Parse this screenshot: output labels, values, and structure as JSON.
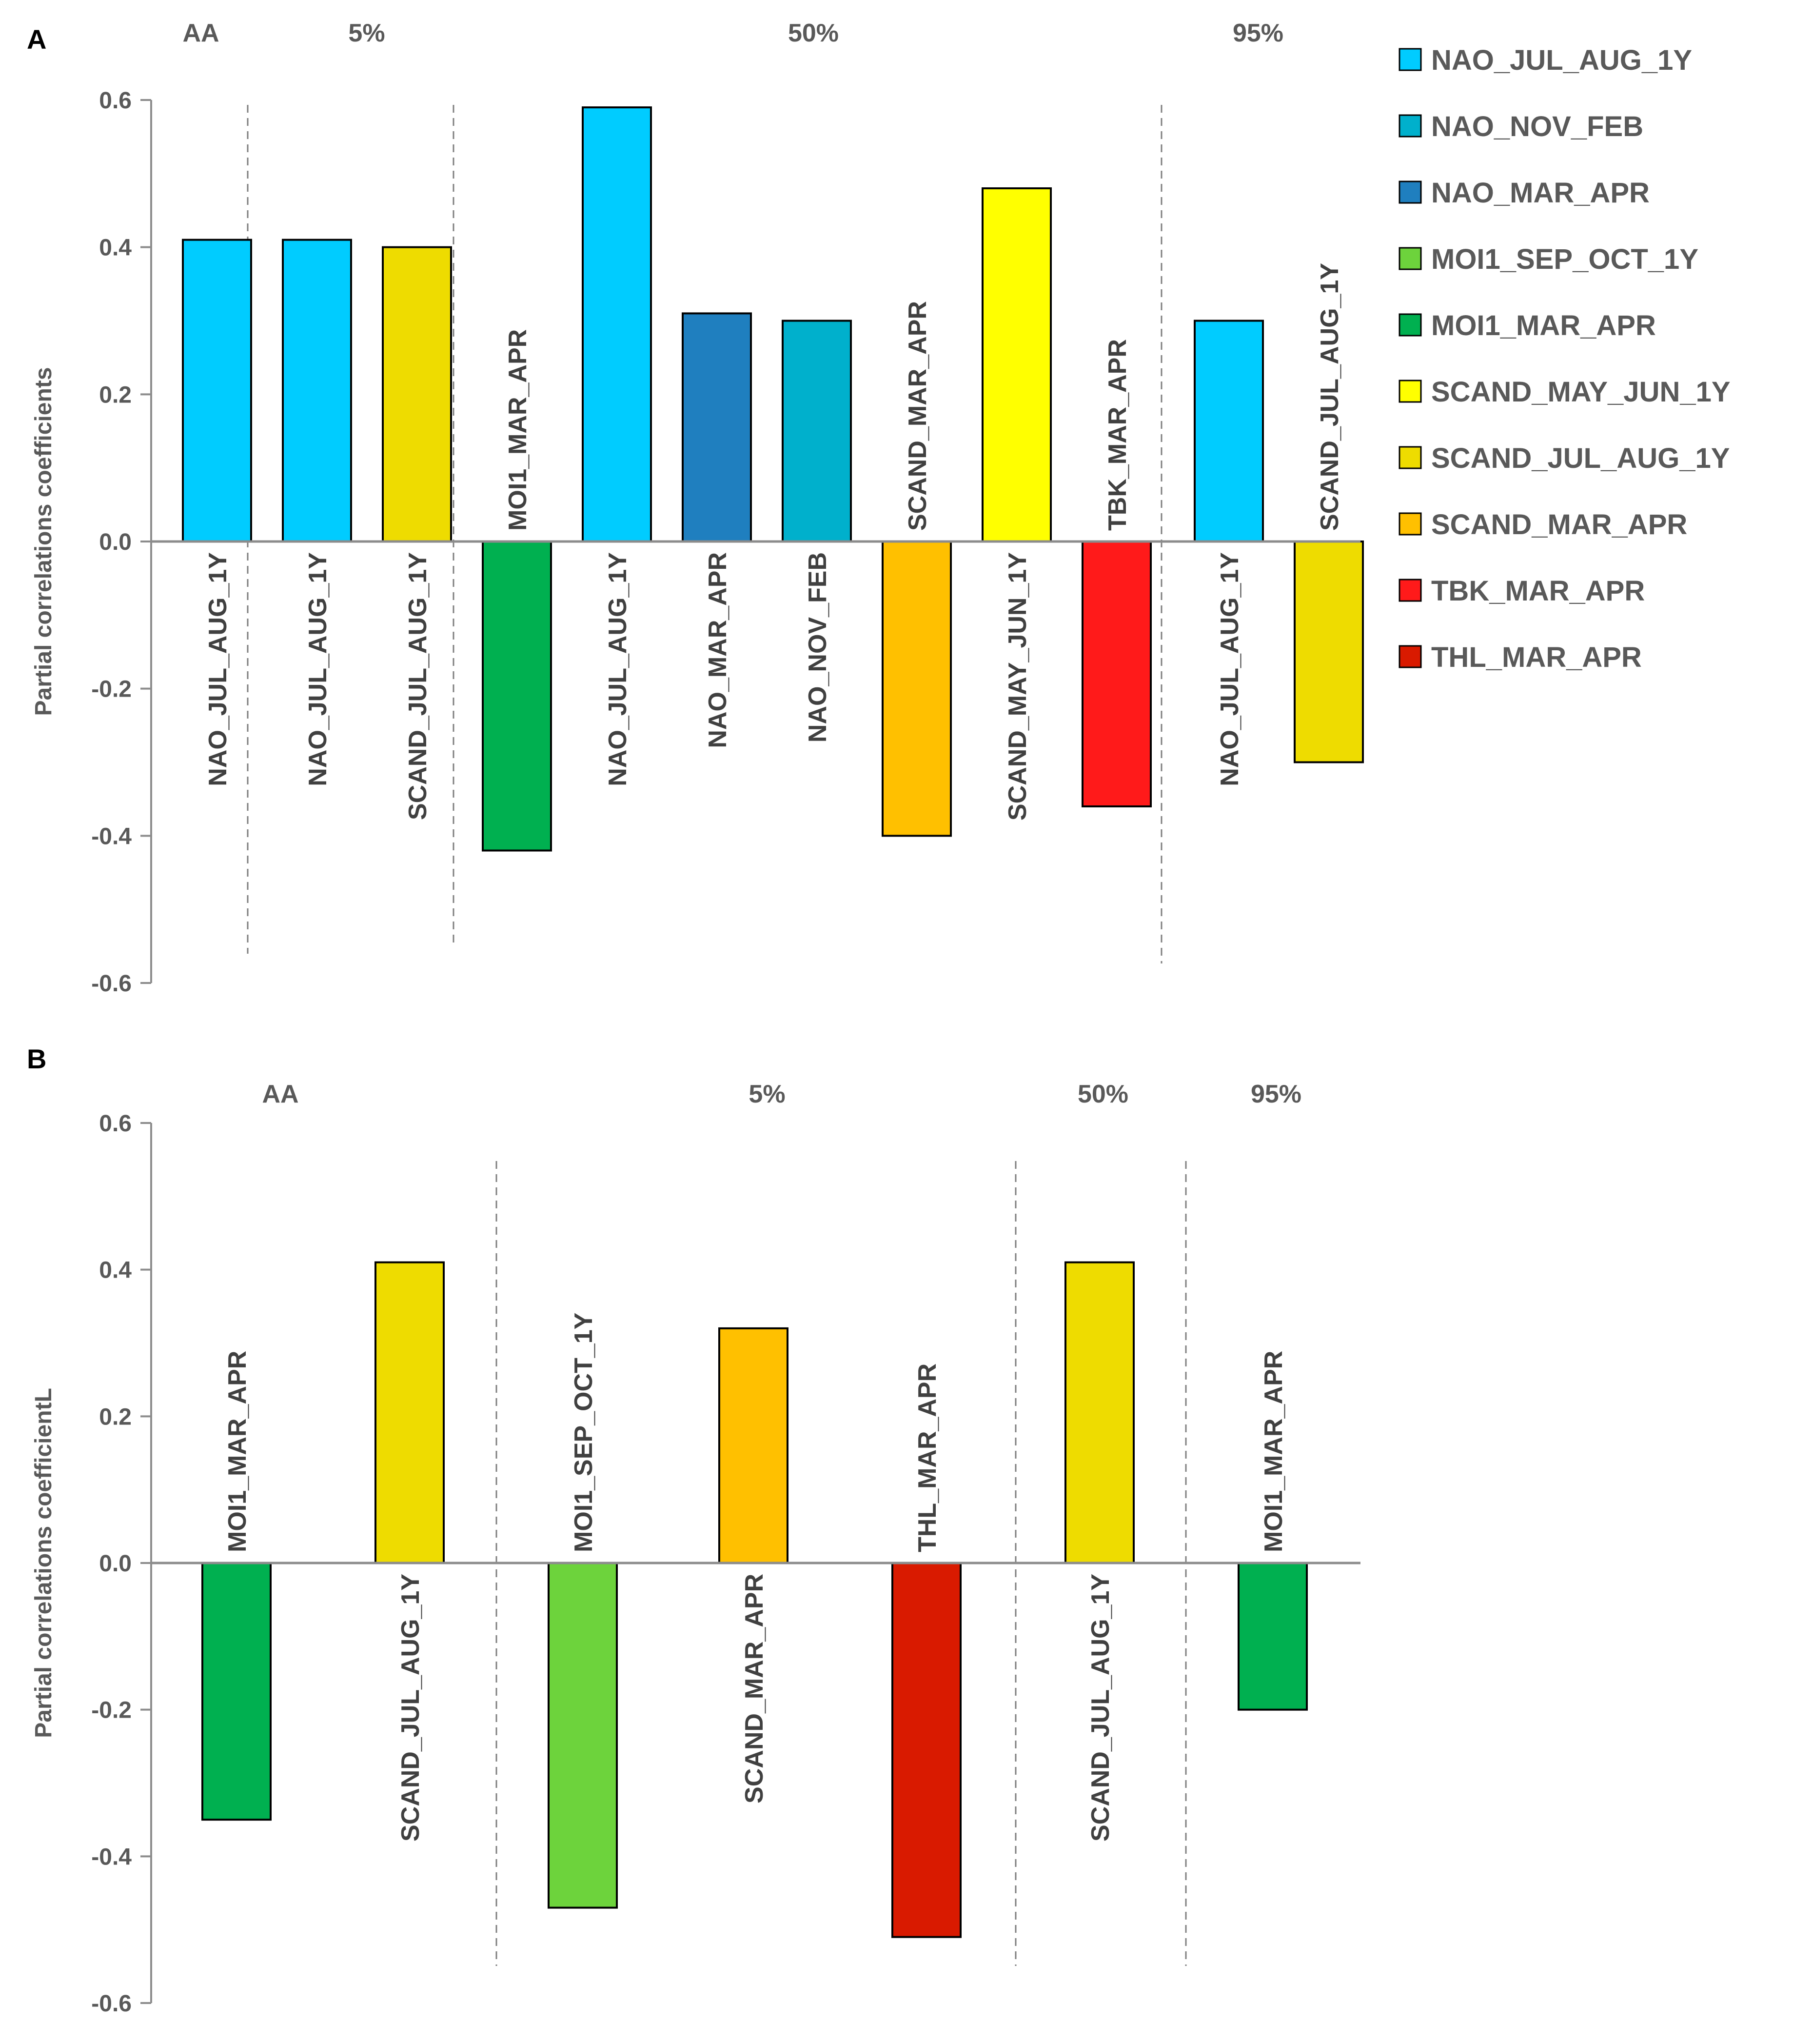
{
  "colors": {
    "NAO_JUL_AUG_1Y": "#00CCFF",
    "NAO_NOV_FEB": "#00B0CC",
    "NAO_MAR_APR": "#1F7FBF",
    "MOI1_SEP_OCT_1Y": "#6DD33C",
    "MOI1_MAR_APR": "#00B050",
    "SCAND_MAY_JUN_1Y": "#FFFF00",
    "SCAND_JUL_AUG_1Y": "#EEDC00",
    "SCAND_MAR_APR": "#FFC000",
    "TBK_MAR_APR": "#FF1A1A",
    "THL_MAR_APR": "#D91A00"
  },
  "legend": {
    "items": [
      "NAO_JUL_AUG_1Y",
      "NAO_NOV_FEB",
      "NAO_MAR_APR",
      "MOI1_SEP_OCT_1Y",
      "MOI1_MAR_APR",
      "SCAND_MAY_JUN_1Y",
      "SCAND_JUL_AUG_1Y",
      "SCAND_MAR_APR",
      "TBK_MAR_APR",
      "THL_MAR_APR"
    ]
  },
  "chart_data": [
    {
      "type": "bar",
      "panel": "A",
      "ylabel": "Partial correlations coefficients",
      "ylim": [
        -0.6,
        0.6
      ],
      "yticks": [
        "0.6",
        "0.4",
        "0.2",
        "0.0",
        "-0.2",
        "-0.4",
        "-0.6"
      ],
      "grid": false,
      "groups": [
        {
          "label": "AA",
          "bars": [
            {
              "name": "NAO_JUL_AUG_1Y",
              "value": 0.41
            }
          ]
        },
        {
          "label": "5%",
          "bars": [
            {
              "name": "NAO_JUL_AUG_1Y",
              "value": 0.41
            },
            {
              "name": "SCAND_JUL_AUG_1Y",
              "value": 0.4
            }
          ]
        },
        {
          "label": "50%",
          "bars": [
            {
              "name": "MOI1_MAR_APR",
              "value": -0.42
            },
            {
              "name": "NAO_JUL_AUG_1Y",
              "value": 0.59
            },
            {
              "name": "NAO_MAR_APR",
              "value": 0.31
            },
            {
              "name": "NAO_NOV_FEB",
              "value": 0.3
            },
            {
              "name": "SCAND_MAR_APR",
              "value": -0.4
            },
            {
              "name": "SCAND_MAY_JUN_1Y",
              "value": 0.48
            },
            {
              "name": "TBK_MAR_APR",
              "value": -0.36
            }
          ]
        },
        {
          "label": "95%",
          "bars": [
            {
              "name": "NAO_JUL_AUG_1Y",
              "value": 0.3
            },
            {
              "name": "SCAND_JUL_AUG_1Y",
              "value": -0.3
            }
          ]
        }
      ]
    },
    {
      "type": "bar",
      "panel": "B",
      "ylabel": "Partial correlations coefficientL",
      "ylim": [
        -0.6,
        0.6
      ],
      "yticks": [
        "0.6",
        "0.4",
        "0.2",
        "0.0",
        "-0.2",
        "-0.4",
        "-0.6"
      ],
      "grid": false,
      "groups": [
        {
          "label": "AA",
          "bars": [
            {
              "name": "MOI1_MAR_APR",
              "value": -0.35
            },
            {
              "name": "SCAND_JUL_AUG_1Y",
              "value": 0.41
            }
          ]
        },
        {
          "label": "5%",
          "bars": [
            {
              "name": "MOI1_SEP_OCT_1Y",
              "value": -0.47
            },
            {
              "name": "SCAND_MAR_APR",
              "value": 0.32
            },
            {
              "name": "THL_MAR_APR",
              "value": -0.51
            }
          ]
        },
        {
          "label": "50%",
          "bars": [
            {
              "name": "SCAND_JUL_AUG_1Y",
              "value": 0.41
            }
          ]
        },
        {
          "label": "95%",
          "bars": [
            {
              "name": "MOI1_MAR_APR",
              "value": -0.2
            }
          ]
        }
      ]
    }
  ]
}
